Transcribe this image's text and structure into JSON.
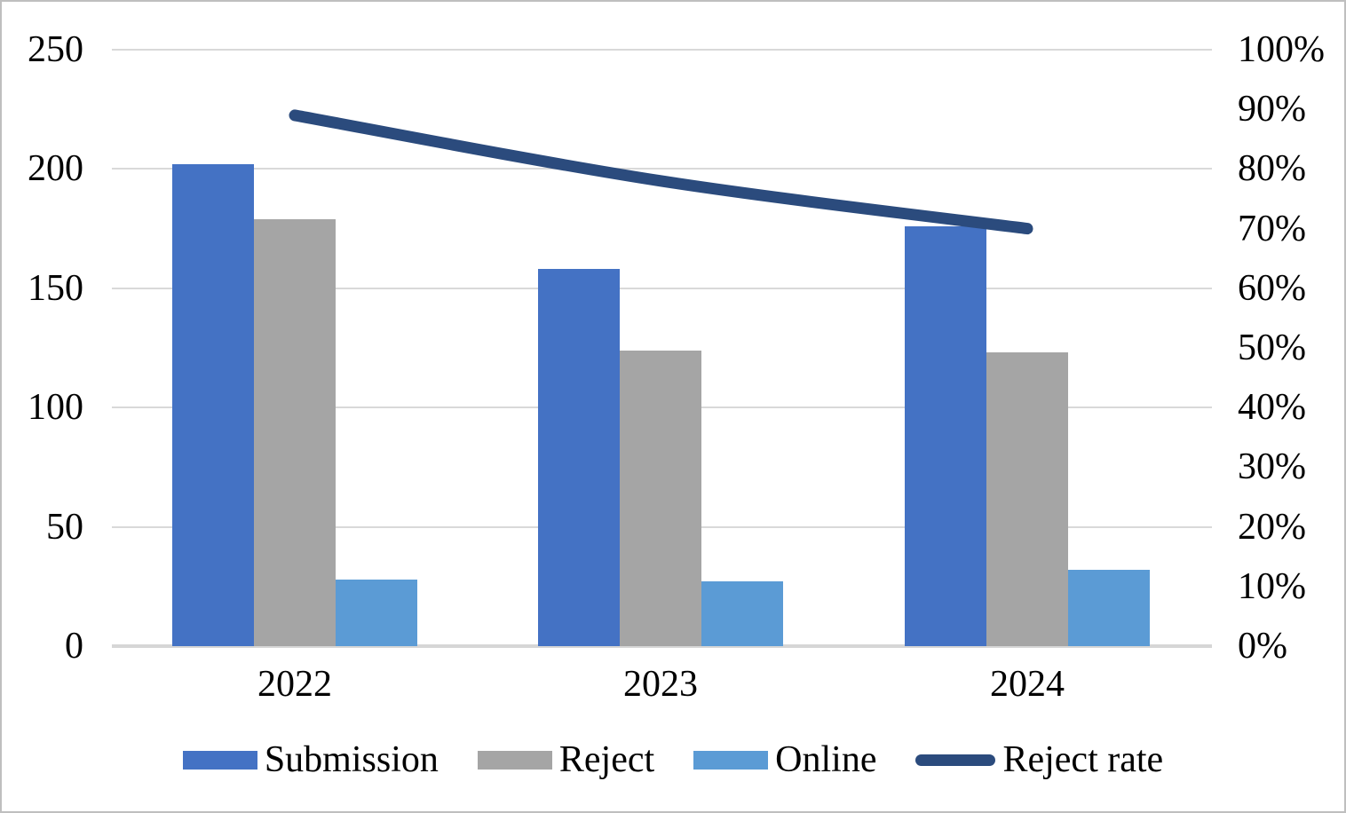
{
  "figure": {
    "background": "#FFFFFF",
    "border_color": "#BFBFBF"
  },
  "chart_data": {
    "type": "combo-bar-line",
    "title": "",
    "xlabel": "",
    "ylabel": "",
    "categories": [
      "2022",
      "2023",
      "2024"
    ],
    "bar_series": [
      {
        "name": "Submission",
        "values": [
          202,
          158,
          176
        ],
        "color": "#4472C4",
        "axis": "left"
      },
      {
        "name": "Reject",
        "values": [
          179,
          124,
          123
        ],
        "color": "#A5A5A5",
        "axis": "left"
      },
      {
        "name": "Online",
        "values": [
          28,
          27,
          32
        ],
        "color": "#5B9BD5",
        "axis": "left"
      }
    ],
    "line_series": [
      {
        "name": "Reject rate",
        "values_percent": [
          89,
          78,
          70
        ],
        "color": "#2B4B7D",
        "axis": "right",
        "smooth": true,
        "stroke_width": 13
      }
    ],
    "left_axis": {
      "min": 0,
      "max": 250,
      "tick_labels": [
        "250",
        "200",
        "150",
        "100",
        "50",
        "0"
      ]
    },
    "right_axis": {
      "min": 0,
      "max": 100,
      "tick_labels": [
        "100%",
        "90%",
        "80%",
        "70%",
        "60%",
        "50%",
        "40%",
        "30%",
        "20%",
        "10%",
        "0%"
      ]
    },
    "grid": {
      "show_horizontal": true,
      "color": "#D9D9D9",
      "show_vertical": false
    },
    "legend": {
      "position": "bottom",
      "items": [
        "Submission",
        "Reject",
        "Online",
        "Reject rate"
      ]
    }
  }
}
